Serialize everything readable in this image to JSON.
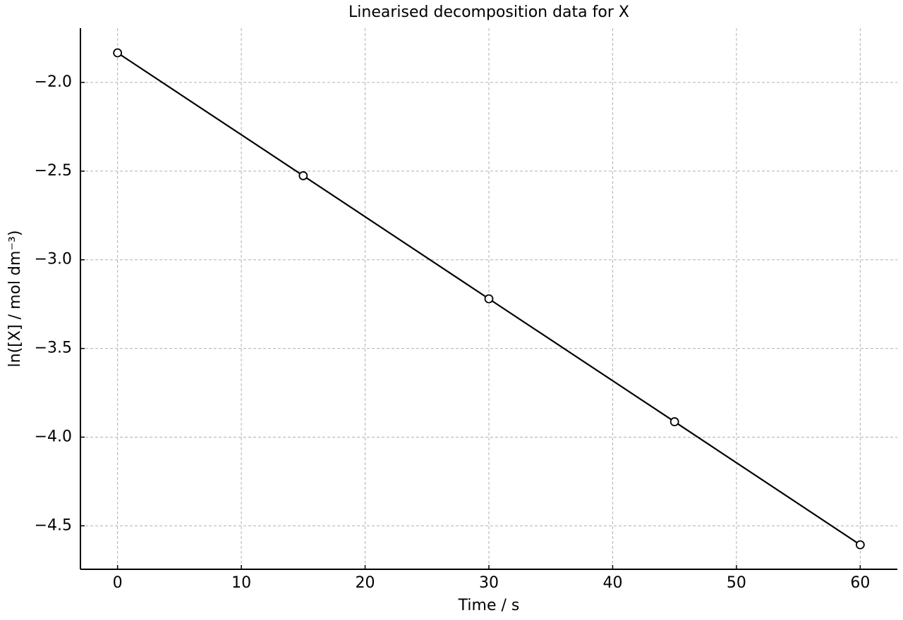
{
  "chart_data": {
    "type": "line",
    "title": "Linearised decomposition data for X",
    "xlabel": "Time / s",
    "ylabel": "ln([X] / mol dm⁻³)",
    "x": [
      0,
      15,
      30,
      45,
      60
    ],
    "series": [
      {
        "color": "#000000",
        "values": [
          -1.833,
          -2.526,
          -3.22,
          -3.913,
          -4.607
        ]
      }
    ],
    "xlim": [
      -3,
      63
    ],
    "ylim": [
      -4.745,
      -1.694
    ],
    "xticks": [
      0,
      10,
      20,
      30,
      40,
      50,
      60
    ],
    "yticks": [
      {
        "value": -2,
        "label": "−2.0"
      },
      {
        "value": -2.5,
        "label": "−2.5"
      },
      {
        "value": -3,
        "label": "−3.0"
      },
      {
        "value": -3.5,
        "label": "−3.5"
      },
      {
        "value": -4,
        "label": "−4.0"
      },
      {
        "value": -4.5,
        "label": "−4.5"
      }
    ],
    "grid": true
  }
}
